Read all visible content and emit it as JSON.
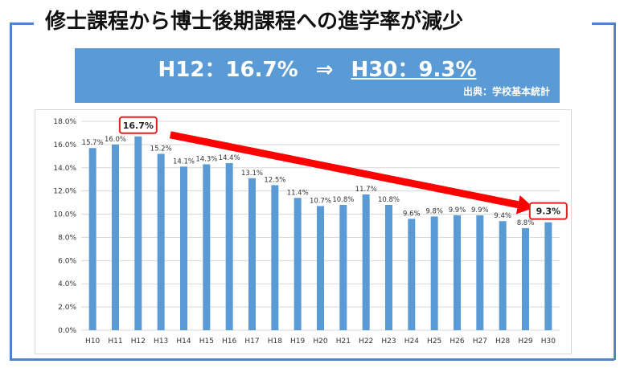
{
  "title": "修士課程から博士後期課程への進学率が減少",
  "banner": {
    "from": "H12：16.7%",
    "arrow": "⇒",
    "to": "H30：9.3%",
    "source": "出典：学校基本統計"
  },
  "colors": {
    "bar": "#5b9bd5",
    "frame": "#4a86c8",
    "callout": "#e02020",
    "arrow": "#ff0000"
  },
  "chart_data": {
    "type": "bar",
    "categories": [
      "H10",
      "H11",
      "H12",
      "H13",
      "H14",
      "H15",
      "H16",
      "H17",
      "H18",
      "H19",
      "H20",
      "H21",
      "H22",
      "H23",
      "H24",
      "H25",
      "H26",
      "H27",
      "H28",
      "H29",
      "H30"
    ],
    "values": [
      15.7,
      16.0,
      16.7,
      15.2,
      14.1,
      14.3,
      14.4,
      13.1,
      12.5,
      11.4,
      10.7,
      10.8,
      11.7,
      10.8,
      9.6,
      9.8,
      9.9,
      9.9,
      9.4,
      8.8,
      9.3
    ],
    "value_labels": [
      "15.7%",
      "16.0%",
      "16.7%",
      "15.2%",
      "14.1%",
      "14.3%",
      "14.4%",
      "13.1%",
      "12.5%",
      "11.4%",
      "10.7%",
      "10.8%",
      "11.7%",
      "10.8%",
      "9.6%",
      "9.8%",
      "9.9%",
      "9.9%",
      "9.4%",
      "8.8%",
      "9.3%"
    ],
    "yticks": [
      "0.0%",
      "2.0%",
      "4.0%",
      "6.0%",
      "8.0%",
      "10.0%",
      "12.0%",
      "14.0%",
      "16.0%",
      "18.0%"
    ],
    "ylim": [
      0,
      18
    ],
    "grid": true,
    "legend": "none",
    "callouts": [
      {
        "category": "H12",
        "label": "16.7%"
      },
      {
        "category": "H30",
        "label": "9.3%"
      }
    ],
    "trend_arrow": {
      "from": "H12",
      "to": "H30"
    }
  }
}
